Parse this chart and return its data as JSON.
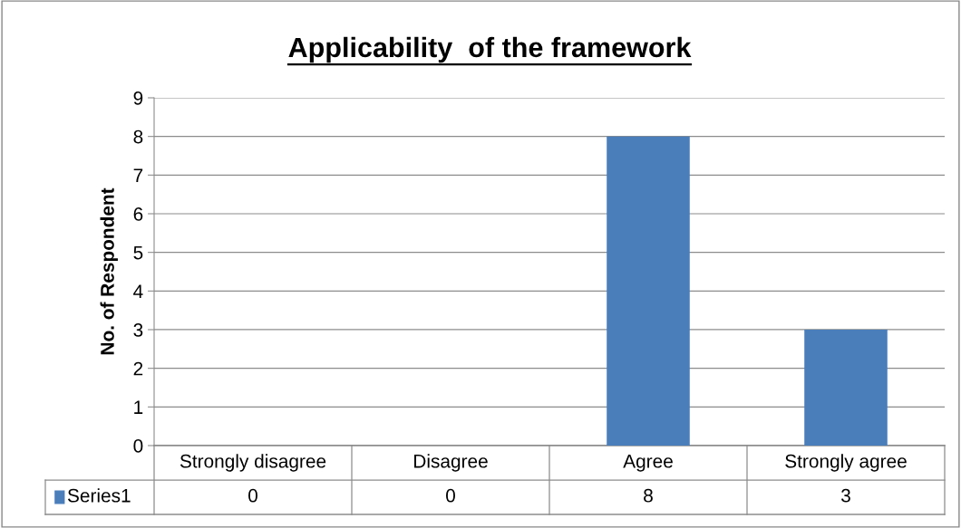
{
  "chart_data": {
    "type": "bar",
    "title": "Applicability  of the framework",
    "ylabel": "No. of Respondent",
    "categories": [
      "Strongly disagree",
      "Disagree",
      "Agree",
      "Strongly agree"
    ],
    "series": [
      {
        "name": "Series1",
        "color": "#4a7ebb",
        "values": [
          0,
          0,
          8,
          3
        ]
      }
    ],
    "ylim": [
      0,
      9
    ],
    "yticks": [
      0,
      1,
      2,
      3,
      4,
      5,
      6,
      7,
      8,
      9
    ],
    "grid": "y",
    "data_labels": true
  }
}
